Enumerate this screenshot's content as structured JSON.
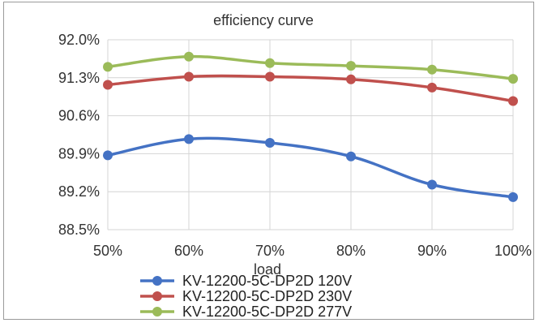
{
  "chart_data": {
    "type": "line",
    "title": "efficiency curve",
    "xlabel": "load",
    "ylabel": "",
    "categories": [
      "50%",
      "60%",
      "70%",
      "80%",
      "90%",
      "100%"
    ],
    "yticks": [
      "88.5%",
      "89.2%",
      "89.9%",
      "90.6%",
      "91.3%",
      "92.0%"
    ],
    "ylim": [
      88.5,
      92.0
    ],
    "grid": "horizontal",
    "legend_position": "bottom",
    "series": [
      {
        "name": "KV-12200-5C-DP2D 120V",
        "color": "#4472C4",
        "values": [
          89.87,
          90.17,
          90.1,
          89.85,
          89.33,
          89.1
        ]
      },
      {
        "name": "KV-12200-5C-DP2D 230V",
        "color": "#C0504D",
        "values": [
          91.17,
          91.32,
          91.32,
          91.27,
          91.12,
          90.87
        ]
      },
      {
        "name": "KV-12200-5C-DP2D 277V",
        "color": "#9BBB59",
        "values": [
          91.5,
          91.69,
          91.57,
          91.52,
          91.45,
          91.28
        ]
      }
    ]
  }
}
